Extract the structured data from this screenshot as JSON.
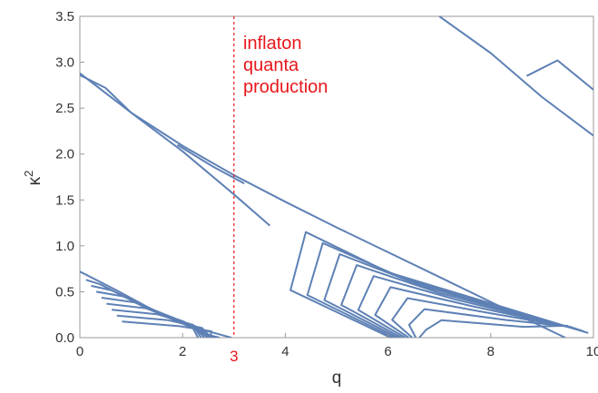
{
  "chart_data": {
    "type": "contour",
    "xlabel": "q",
    "ylabel": "κ",
    "ylabel_superscript": "2",
    "xlim": [
      0,
      10
    ],
    "ylim": [
      0,
      3.5
    ],
    "xticks": [
      "0",
      "2",
      "4",
      "6",
      "8",
      "10"
    ],
    "xtick_values": [
      0,
      2,
      4,
      6,
      8,
      10
    ],
    "yticks": [
      "0.0",
      "0.5",
      "1.0",
      "1.5",
      "2.0",
      "2.5",
      "3.0",
      "3.5"
    ],
    "ytick_values": [
      0,
      0.5,
      1.0,
      1.5,
      2.0,
      2.5,
      3.0,
      3.5
    ],
    "line_color": "#5e81b5",
    "annotation_color": "#e8161b",
    "marker": {
      "x": 3,
      "label": "3",
      "style": "dashed"
    },
    "annotation": [
      "inflaton",
      "quanta",
      "production"
    ],
    "series": [
      {
        "values": [
          [
            0,
            2.88
          ],
          [
            1,
            2.45
          ],
          [
            2,
            2.09
          ],
          [
            3,
            1.77
          ],
          [
            4,
            1.48
          ],
          [
            5,
            1.2
          ],
          [
            6,
            0.93
          ],
          [
            7,
            0.66
          ],
          [
            8,
            0.39
          ],
          [
            9,
            0.12
          ],
          [
            9.45,
            0
          ]
        ]
      },
      {
        "values": [
          [
            0,
            2.86
          ],
          [
            0.5,
            2.72
          ],
          [
            1,
            2.45
          ],
          [
            2,
            2.03
          ],
          [
            3,
            1.56
          ],
          [
            3.7,
            1.22
          ]
        ]
      },
      {
        "values": [
          [
            0,
            0.72
          ],
          [
            0.7,
            0.52
          ],
          [
            1.5,
            0.28
          ],
          [
            2.3,
            0.1
          ],
          [
            2.95,
            0
          ]
        ]
      },
      {
        "values": [
          [
            7,
            3.5
          ],
          [
            8,
            3.1
          ],
          [
            9,
            2.62
          ],
          [
            10,
            2.2
          ]
        ]
      }
    ]
  }
}
